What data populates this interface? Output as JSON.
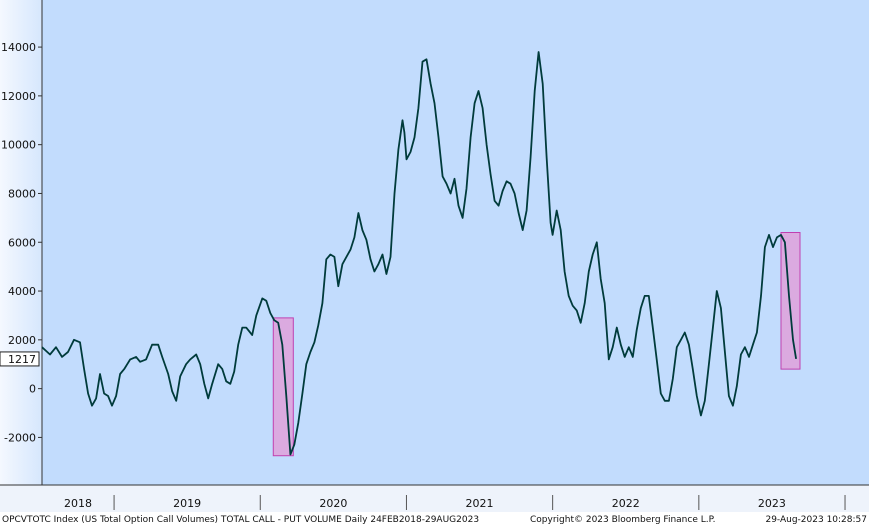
{
  "chart_data": {
    "type": "line",
    "footer_left": "OPCVTOTC Index (US Total Option Call Volumes) TOTAL CALL - PUT VOLUME  Daily 24FEB2018-29AUG2023",
    "footer_center": "Copyright© 2023 Bloomberg Finance L.P.",
    "footer_right": "29-Aug-2023 10:28:57",
    "last_value": 1217,
    "xlim": [
      2018.507,
      2024.164
    ],
    "ylim": [
      -3950,
      15930
    ],
    "yticks": [
      -2000,
      0,
      2000,
      4000,
      6000,
      8000,
      10000,
      12000,
      14000
    ],
    "xticks": [
      2019,
      2020,
      2021,
      2022,
      2023,
      2024
    ],
    "year_labels": [
      {
        "value": 2018.753,
        "label": "2018"
      },
      {
        "value": 2019.5,
        "label": "2019"
      },
      {
        "value": 2020.5,
        "label": "2020"
      },
      {
        "value": 2021.5,
        "label": "2021"
      },
      {
        "value": 2022.5,
        "label": "2022"
      },
      {
        "value": 2023.5,
        "label": "2023"
      }
    ],
    "highlights": [
      {
        "x": [
          2020.089,
          2020.226
        ],
        "y": [
          -2750,
          2900
        ]
      },
      {
        "x": [
          2023.562,
          2023.692
        ],
        "y": [
          800,
          6400
        ]
      }
    ],
    "highlight_color": "#e39ad6",
    "series": [
      {
        "name": "TOTAL CALL - PUT VOLUME",
        "color": "#003b3b",
        "x": [
          2018.507,
          2018.562,
          2018.603,
          2018.644,
          2018.685,
          2018.726,
          2018.767,
          2018.795,
          2018.822,
          2018.849,
          2018.877,
          2018.904,
          2018.932,
          2018.959,
          2018.986,
          2019.014,
          2019.041,
          2019.069,
          2019.11,
          2019.151,
          2019.178,
          2019.219,
          2019.26,
          2019.302,
          2019.329,
          2019.37,
          2019.397,
          2019.425,
          2019.452,
          2019.493,
          2019.521,
          2019.562,
          2019.589,
          2019.617,
          2019.644,
          2019.671,
          2019.712,
          2019.74,
          2019.767,
          2019.795,
          2019.822,
          2019.849,
          2019.877,
          2019.904,
          2019.945,
          2019.973,
          2020.014,
          2020.041,
          2020.069,
          2020.096,
          2020.123,
          2020.151,
          2020.178,
          2020.206,
          2020.233,
          2020.26,
          2020.288,
          2020.315,
          2020.343,
          2020.37,
          2020.397,
          2020.425,
          2020.452,
          2020.48,
          2020.507,
          2020.534,
          2020.562,
          2020.589,
          2020.617,
          2020.644,
          2020.671,
          2020.699,
          2020.726,
          2020.754,
          2020.781,
          2020.808,
          2020.836,
          2020.863,
          2020.891,
          2020.918,
          2020.945,
          2020.973,
          2020.986,
          2021.0,
          2021.028,
          2021.055,
          2021.082,
          2021.11,
          2021.137,
          2021.165,
          2021.192,
          2021.219,
          2021.247,
          2021.274,
          2021.302,
          2021.329,
          2021.356,
          2021.384,
          2021.411,
          2021.439,
          2021.466,
          2021.493,
          2021.521,
          2021.548,
          2021.575,
          2021.603,
          2021.63,
          2021.658,
          2021.685,
          2021.712,
          2021.74,
          2021.767,
          2021.795,
          2021.822,
          2021.849,
          2021.877,
          2021.904,
          2021.932,
          2021.959,
          2021.986,
          2022.0,
          2022.028,
          2022.055,
          2022.082,
          2022.11,
          2022.137,
          2022.165,
          2022.192,
          2022.219,
          2022.247,
          2022.274,
          2022.302,
          2022.329,
          2022.356,
          2022.384,
          2022.411,
          2022.439,
          2022.466,
          2022.493,
          2022.521,
          2022.548,
          2022.575,
          2022.603,
          2022.63,
          2022.658,
          2022.685,
          2022.712,
          2022.74,
          2022.767,
          2022.795,
          2022.822,
          2022.849,
          2022.877,
          2022.904,
          2022.932,
          2022.959,
          2022.986,
          2023.014,
          2023.041,
          2023.069,
          2023.096,
          2023.123,
          2023.151,
          2023.178,
          2023.206,
          2023.233,
          2023.26,
          2023.288,
          2023.315,
          2023.343,
          2023.37,
          2023.397,
          2023.425,
          2023.452,
          2023.48,
          2023.507,
          2023.534,
          2023.562,
          2023.589,
          2023.617,
          2023.644,
          2023.665
        ],
        "values": [
          1700,
          1400,
          1700,
          1300,
          1500,
          2000,
          1900,
          800,
          -200,
          -700,
          -400,
          600,
          -200,
          -300,
          -700,
          -300,
          600,
          800,
          1200,
          1300,
          1100,
          1200,
          1800,
          1800,
          1300,
          600,
          -100,
          -500,
          500,
          1000,
          1200,
          1400,
          1000,
          200,
          -400,
          200,
          1000,
          800,
          300,
          200,
          700,
          1800,
          2500,
          2500,
          2200,
          3000,
          3700,
          3600,
          3100,
          2800,
          2700,
          1800,
          -300,
          -2700,
          -2300,
          -1400,
          -200,
          1000,
          1500,
          1900,
          2600,
          3500,
          5300,
          5500,
          5400,
          4200,
          5100,
          5400,
          5700,
          6200,
          7200,
          6500,
          6100,
          5300,
          4800,
          5100,
          5500,
          4700,
          5400,
          8000,
          9800,
          11000,
          10500,
          9400,
          9700,
          10300,
          11500,
          13400,
          13500,
          12500,
          11700,
          10300,
          8700,
          8400,
          8000,
          8600,
          7500,
          7000,
          8200,
          10300,
          11700,
          12200,
          11500,
          10000,
          8800,
          7700,
          7500,
          8100,
          8500,
          8400,
          8000,
          7200,
          6500,
          7300,
          9500,
          12200,
          13800,
          12500,
          9500,
          6800,
          6300,
          7300,
          6500,
          4800,
          3800,
          3400,
          3200,
          2700,
          3500,
          4800,
          5500,
          6000,
          4500,
          3500,
          1200,
          1700,
          2500,
          1800,
          1300,
          1700,
          1300,
          2400,
          3300,
          3800,
          3800,
          2500,
          1200,
          -200,
          -500,
          -500,
          400,
          1700,
          2000,
          2300,
          1800,
          800,
          -300,
          -1100,
          -500,
          1000,
          2500,
          4000,
          3300,
          1500,
          -300,
          -700,
          100,
          1400,
          1700,
          1300,
          1800,
          2300,
          3800,
          5800,
          6300,
          5800,
          6200,
          6300,
          6000,
          3800,
          2000,
          1217
        ]
      }
    ]
  }
}
